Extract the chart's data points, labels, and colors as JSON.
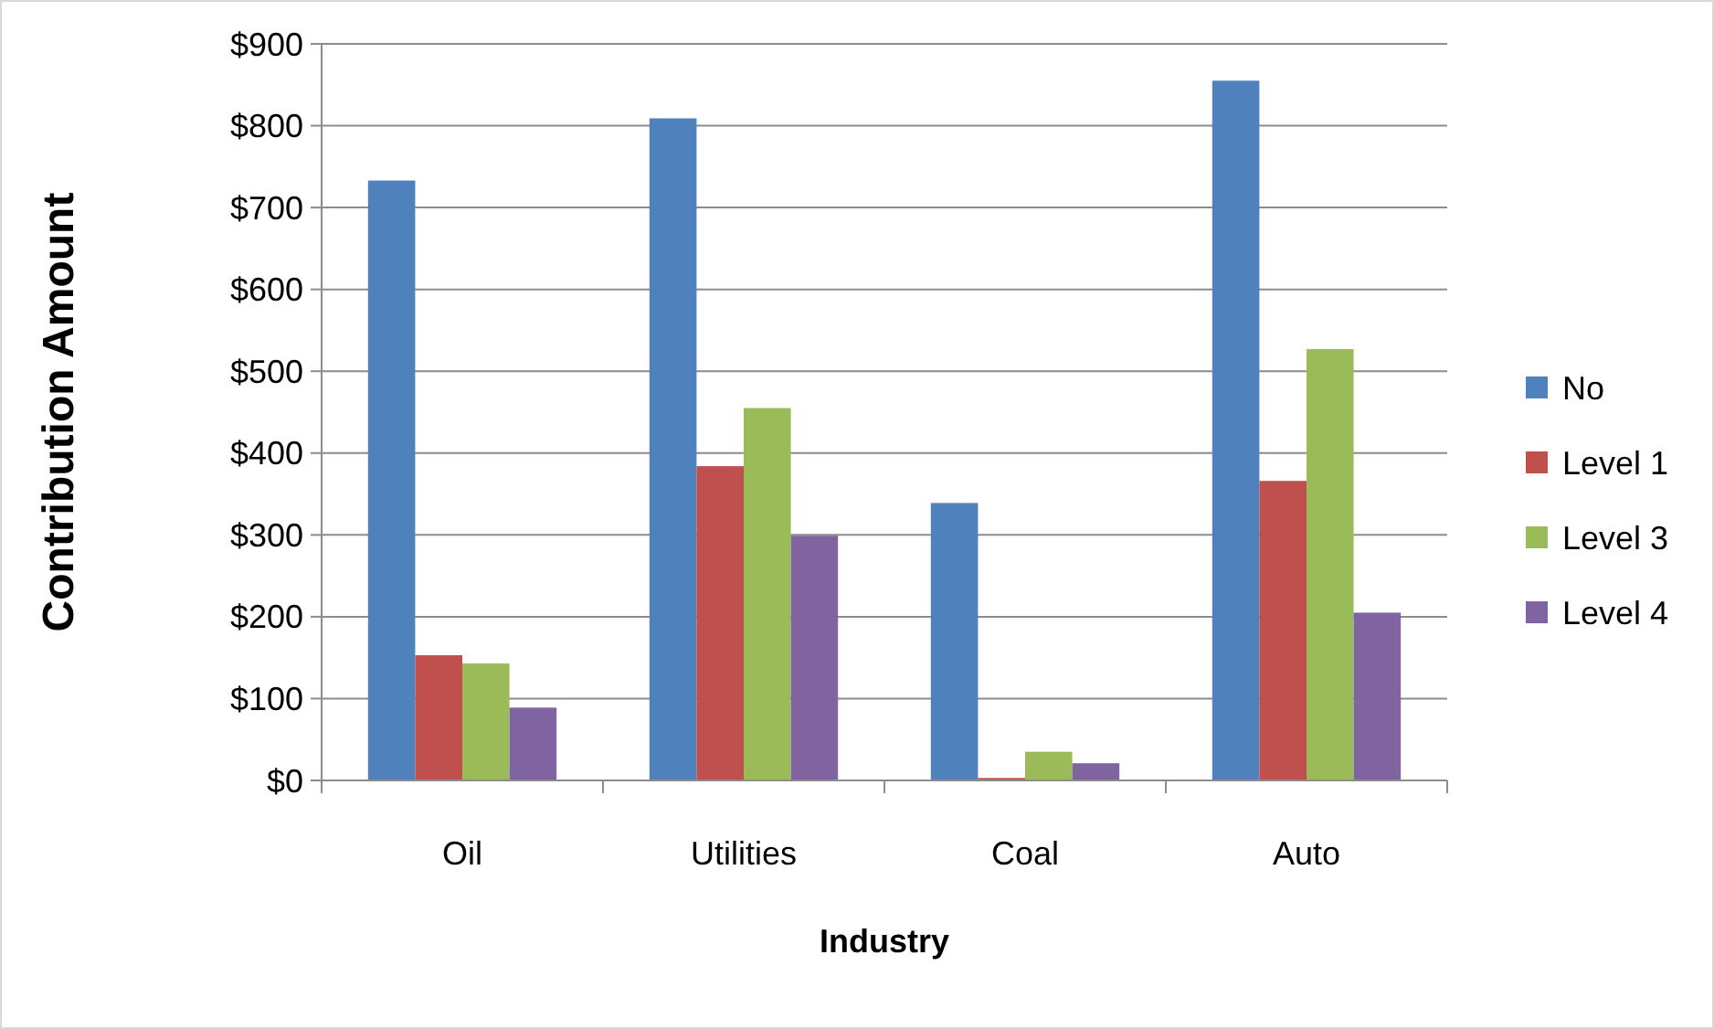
{
  "chart_data": {
    "type": "bar",
    "xlabel": "Industry",
    "ylabel": "Contribution Amount",
    "categories": [
      "Oil",
      "Utilities",
      "Coal",
      "Auto"
    ],
    "series": [
      {
        "name": "No",
        "color": "#4f81bd",
        "values": [
          733,
          809,
          339,
          855
        ]
      },
      {
        "name": "Level 1",
        "color": "#c0504d",
        "values": [
          153,
          384,
          3,
          366
        ]
      },
      {
        "name": "Level 3",
        "color": "#9bbb59",
        "values": [
          143,
          455,
          35,
          527
        ]
      },
      {
        "name": "Level 4",
        "color": "#8064a2",
        "values": [
          89,
          299,
          21,
          205
        ]
      }
    ],
    "ylim": [
      0,
      900
    ],
    "yticks": [
      {
        "value": 0,
        "label": "$0"
      },
      {
        "value": 100,
        "label": "$100"
      },
      {
        "value": 200,
        "label": "$200"
      },
      {
        "value": 300,
        "label": "$300"
      },
      {
        "value": 400,
        "label": "$400"
      },
      {
        "value": 500,
        "label": "$500"
      },
      {
        "value": 600,
        "label": "$600"
      },
      {
        "value": 700,
        "label": "$700"
      },
      {
        "value": 800,
        "label": "$800"
      },
      {
        "value": 900,
        "label": "$900"
      }
    ],
    "grid": "y",
    "legend": "right"
  }
}
